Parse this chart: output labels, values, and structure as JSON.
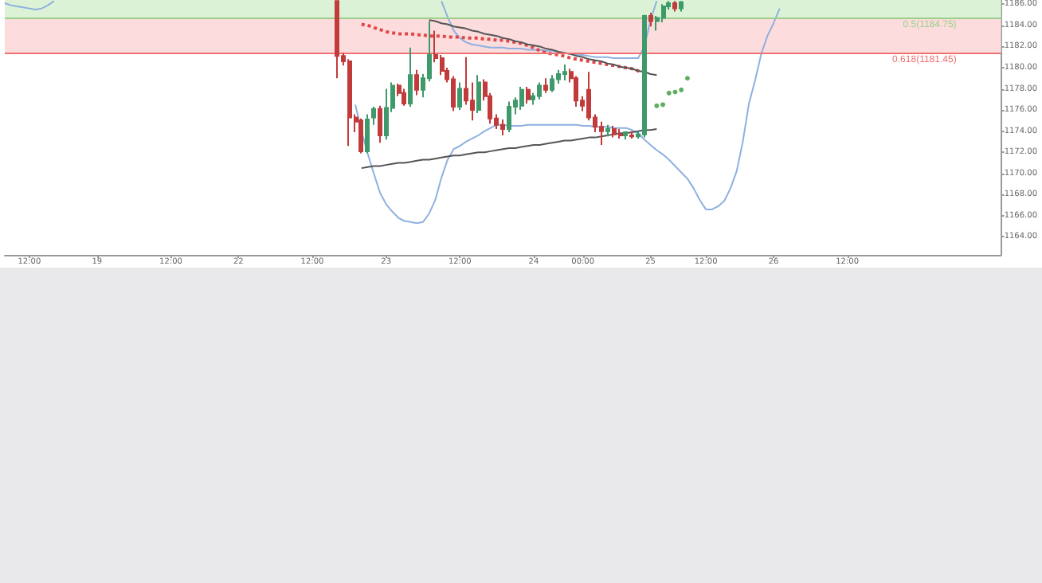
{
  "chart_data": {
    "type": "candlestick",
    "categories": [
      null,
      null,
      null,
      null,
      "12:00",
      null,
      null,
      null,
      null,
      null,
      null,
      null,
      null,
      null,
      null,
      "19",
      null,
      null,
      null,
      null,
      null,
      null,
      null,
      null,
      null,
      null,
      null,
      "12:00",
      null,
      null,
      null,
      null,
      null,
      null,
      null,
      null,
      null,
      null,
      "22",
      null,
      null,
      null,
      null,
      null,
      null,
      null,
      null,
      null,
      null,
      null,
      "12:00",
      null,
      null,
      null,
      null,
      null,
      null,
      null,
      null,
      null,
      null,
      null,
      "23",
      null,
      null,
      null,
      null,
      null,
      null,
      null,
      null,
      null,
      null,
      null,
      "12:00",
      null,
      null,
      null,
      null,
      null,
      null,
      null,
      null,
      null,
      null,
      null,
      "24",
      null,
      null,
      null,
      null,
      null,
      null,
      null,
      "00:00",
      null,
      null,
      null,
      null,
      null,
      null,
      null,
      null,
      null,
      null,
      "25",
      null,
      null,
      null,
      null,
      null,
      null,
      null,
      null,
      "12:00",
      null,
      null,
      null,
      null,
      null,
      null,
      null,
      null,
      null,
      null,
      "26",
      null,
      null,
      null,
      null,
      null,
      null,
      null,
      null,
      null,
      null,
      null,
      "12:00",
      null,
      null,
      null,
      null,
      null,
      null,
      null,
      null,
      null,
      null,
      null,
      null,
      null,
      null,
      null,
      null,
      null,
      null,
      null,
      null,
      null,
      null,
      null,
      null,
      null
    ],
    "ohlc": [
      null,
      null,
      null,
      null,
      null,
      null,
      null,
      null,
      null,
      null,
      null,
      null,
      null,
      null,
      null,
      null,
      null,
      null,
      null,
      null,
      null,
      null,
      null,
      null,
      null,
      null,
      null,
      null,
      null,
      null,
      null,
      null,
      null,
      null,
      null,
      null,
      null,
      null,
      null,
      null,
      null,
      null,
      null,
      null,
      null,
      null,
      null,
      null,
      null,
      null,
      null,
      null,
      null,
      null,
      [
        1186.3,
        1186.3,
        1179.0,
        1181.1
      ],
      [
        1181.1,
        1181.4,
        1180.2,
        1180.6
      ],
      [
        1180.6,
        1180.8,
        1172.6,
        1175.3
      ],
      [
        1175.3,
        1175.6,
        1173.9,
        1174.9
      ],
      [
        1175.0,
        1175.2,
        1171.9,
        1172.1
      ],
      [
        1172.1,
        1175.6,
        1171.9,
        1175.1
      ],
      [
        1175.3,
        1176.3,
        1174.6,
        1176.1
      ],
      [
        1176.1,
        1176.4,
        1172.9,
        1173.6
      ],
      [
        1173.6,
        1178.0,
        1173.2,
        1176.2
      ],
      [
        1176.2,
        1178.6,
        1175.8,
        1178.3
      ],
      [
        1178.3,
        1178.5,
        1177.3,
        1177.6
      ],
      [
        1177.6,
        1178.0,
        1176.4,
        1176.6
      ],
      [
        1176.6,
        1181.9,
        1176.3,
        1179.3
      ],
      [
        1179.3,
        1179.8,
        1177.4,
        1177.9
      ],
      [
        1177.9,
        1179.4,
        1177.2,
        1179.0
      ],
      [
        1179.0,
        1184.4,
        1178.7,
        1181.2
      ],
      [
        1181.2,
        1183.5,
        1180.5,
        1180.9
      ],
      [
        1180.9,
        1181.2,
        1179.3,
        1179.7
      ],
      [
        1179.7,
        1180.0,
        1178.6,
        1178.9
      ],
      [
        1178.9,
        1179.2,
        1175.9,
        1176.3
      ],
      [
        1176.3,
        1178.6,
        1176.0,
        1178.0
      ],
      [
        1178.0,
        1181.0,
        1176.5,
        1176.9
      ],
      [
        1176.9,
        1178.6,
        1175.0,
        1176.0
      ],
      [
        1176.0,
        1179.3,
        1175.7,
        1178.6
      ],
      [
        1178.6,
        1178.9,
        1176.9,
        1177.3
      ],
      [
        1177.3,
        1177.6,
        1174.7,
        1175.2
      ],
      [
        1175.2,
        1175.6,
        1174.2,
        1174.6
      ],
      [
        1174.6,
        1175.1,
        1173.6,
        1174.2
      ],
      [
        1174.2,
        1176.8,
        1173.9,
        1176.3
      ],
      [
        1176.3,
        1177.2,
        1175.6,
        1176.9
      ],
      [
        1176.4,
        1178.2,
        1176.0,
        1177.9
      ],
      [
        1177.9,
        1178.2,
        1176.6,
        1177.0
      ],
      [
        1177.0,
        1177.6,
        1176.5,
        1177.3
      ],
      [
        1177.3,
        1178.6,
        1177.0,
        1178.3
      ],
      [
        1178.3,
        1179.0,
        1177.6,
        1177.9
      ],
      [
        1177.9,
        1179.3,
        1177.7,
        1178.9
      ],
      [
        1178.9,
        1179.8,
        1178.5,
        1179.4
      ],
      [
        1179.4,
        1180.3,
        1178.8,
        1179.6
      ],
      [
        1179.6,
        1179.9,
        1178.6,
        1179.0
      ],
      [
        1179.0,
        1179.2,
        1176.3,
        1176.9
      ],
      [
        1176.9,
        1177.3,
        1175.9,
        1176.4
      ],
      [
        1177.9,
        1179.6,
        1175.0,
        1175.3
      ],
      [
        1175.3,
        1175.6,
        1173.9,
        1174.4
      ],
      [
        1174.4,
        1174.9,
        1172.7,
        1174.0
      ],
      [
        1174.0,
        1174.6,
        1173.5,
        1174.2
      ],
      [
        1174.2,
        1174.5,
        1173.4,
        1173.7
      ],
      [
        1173.7,
        1174.2,
        1173.3,
        1173.6
      ],
      [
        1173.6,
        1174.0,
        1173.2,
        1173.9
      ],
      [
        1173.6,
        1174.0,
        1173.3,
        1173.5
      ],
      [
        1173.5,
        1174.0,
        1173.3,
        1173.7
      ],
      [
        1173.7,
        1185.0,
        1173.4,
        1184.9
      ],
      [
        1184.9,
        1185.2,
        1183.9,
        1184.4
      ],
      [
        1184.4,
        1184.9,
        1183.5,
        1184.7
      ],
      [
        1184.7,
        1186.0,
        1184.3,
        1185.8
      ],
      [
        1185.8,
        1186.3,
        1185.5,
        1186.1
      ],
      [
        1186.1,
        1186.3,
        1185.3,
        1185.6
      ],
      [
        1185.6,
        1186.3,
        1185.3,
        1186.2
      ],
      null,
      null,
      null,
      null,
      null,
      null,
      null,
      null,
      null,
      null,
      null,
      null,
      null,
      null,
      null,
      null,
      null,
      null,
      null,
      null,
      null,
      null,
      null,
      null,
      null,
      null,
      null,
      null,
      null,
      null,
      null,
      null,
      null,
      null,
      null,
      null,
      null,
      null,
      null,
      null,
      null,
      null,
      null,
      null,
      null,
      null,
      null,
      null,
      null,
      null,
      null,
      null
    ],
    "colors": [
      null,
      null,
      null,
      null,
      null,
      null,
      null,
      null,
      null,
      null,
      null,
      null,
      null,
      null,
      null,
      null,
      null,
      null,
      null,
      null,
      null,
      null,
      null,
      null,
      null,
      null,
      null,
      null,
      null,
      null,
      null,
      null,
      null,
      null,
      null,
      null,
      null,
      null,
      null,
      null,
      null,
      null,
      null,
      null,
      null,
      null,
      null,
      null,
      null,
      null,
      null,
      null,
      null,
      null,
      "#c23b3b",
      "#c23b3b",
      "#c23b3b",
      "#c23b3b",
      "#c23b3b",
      "#3f9a6b",
      "#3f9a6b",
      "#c23b3b",
      "#3f9a6b",
      "#3f9a6b",
      "#c23b3b",
      "#c23b3b",
      "#3f9a6b",
      "#c23b3b",
      "#3f9a6b",
      "#3f9a6b",
      "#c23b3b",
      "#c23b3b",
      "#c23b3b",
      "#c23b3b",
      "#3f9a6b",
      "#c23b3b",
      "#c23b3b",
      "#3f9a6b",
      "#c23b3b",
      "#c23b3b",
      "#c23b3b",
      "#c23b3b",
      "#3f9a6b",
      "#3f9a6b",
      "#3f9a6b",
      "#c23b3b",
      "#3f9a6b",
      "#3f9a6b",
      "#c23b3b",
      "#3f9a6b",
      "#3f9a6b",
      "#3f9a6b",
      "#c23b3b",
      "#c23b3b",
      "#c23b3b",
      "#c23b3b",
      "#c23b3b",
      "#c23b3b",
      "#3f9a6b",
      "#c23b3b",
      "#c23b3b",
      "#3f9a6b",
      "#c23b3b",
      "#3f9a6b",
      "#3f9a6b",
      "#c23b3b",
      "#3f9a6b",
      "#3f9a6b",
      "#3f9a6b",
      "#c23b3b",
      "#3f9a6b",
      null,
      null,
      null,
      null,
      null,
      null,
      null,
      null,
      null,
      null,
      null,
      null,
      null,
      null,
      null,
      null,
      null,
      null,
      null,
      null,
      null,
      null,
      null,
      null,
      null,
      null,
      null,
      null,
      null,
      null,
      null,
      null,
      null,
      null,
      null,
      null,
      null,
      null,
      null,
      null,
      null,
      null,
      null,
      null,
      null,
      null,
      null,
      null,
      null,
      null,
      null,
      null
    ],
    "series": [
      {
        "type": "line",
        "color": "#8fb0e0",
        "values": [
          1186.1,
          1185.9,
          1185.8,
          1185.7,
          1185.6,
          1185.5,
          1185.6,
          1185.9,
          1186.3,
          null,
          null,
          null,
          null,
          null,
          null,
          null,
          null,
          null,
          null,
          null,
          null,
          null,
          null,
          null,
          null,
          null,
          null,
          null,
          null,
          null,
          null,
          null,
          null,
          null,
          null,
          null,
          null,
          null,
          null,
          null,
          null,
          null,
          null,
          null,
          null,
          null,
          null,
          null,
          null,
          null,
          null,
          null,
          null,
          null,
          null,
          null,
          null,
          null,
          null,
          null,
          null,
          null,
          null,
          null,
          null,
          null,
          null,
          null,
          null,
          null,
          null,
          null,
          null,
          null,
          null,
          null,
          null,
          null,
          null,
          null,
          null,
          null,
          null,
          null,
          null,
          null,
          null,
          null,
          null,
          null,
          null,
          null,
          null,
          null,
          null,
          null,
          null,
          null,
          null,
          null,
          null,
          null,
          null,
          null,
          null,
          null,
          null,
          null,
          null,
          null,
          null,
          null,
          null,
          null,
          null,
          null,
          null,
          null,
          null,
          null,
          null,
          null,
          null,
          null,
          null,
          null,
          null,
          null,
          null,
          null,
          null,
          null,
          null,
          null,
          null,
          null,
          null,
          null,
          null,
          null,
          null,
          null,
          null,
          null,
          null,
          null,
          null,
          null,
          null,
          null,
          null,
          null,
          null,
          null,
          null,
          null,
          null,
          null,
          null,
          null,
          null,
          null,
          null
        ]
      },
      {
        "type": "line",
        "color": "#8fb0e0",
        "values": [
          null,
          null,
          null,
          null,
          null,
          null,
          null,
          null,
          null,
          null,
          null,
          null,
          null,
          null,
          null,
          null,
          null,
          null,
          null,
          null,
          null,
          null,
          null,
          null,
          null,
          null,
          null,
          null,
          null,
          null,
          null,
          null,
          null,
          null,
          null,
          null,
          null,
          null,
          null,
          null,
          null,
          null,
          null,
          null,
          null,
          null,
          null,
          null,
          null,
          null,
          null,
          null,
          null,
          null,
          null,
          null,
          null,
          1176.5,
          1174.0,
          1171.9,
          1170.0,
          1168.2,
          1167.1,
          1166.4,
          1165.8,
          1165.5,
          1165.4,
          1165.3,
          1165.4,
          1166.2,
          1167.5,
          1169.6,
          1171.3,
          1172.3,
          1172.6,
          1173.0,
          1173.3,
          1173.6,
          1174.0,
          1174.3,
          1174.6,
          1174.6,
          1174.5,
          1174.5,
          1174.5,
          1174.6,
          1174.6,
          1174.6,
          1174.6,
          1174.6,
          1174.6,
          1174.6,
          1174.6,
          1174.6,
          1174.5,
          1174.5,
          1174.4,
          1174.4,
          1174.4,
          1174.3,
          1174.3,
          1174.3,
          1174.1,
          1173.8,
          1173.2,
          1172.7,
          1172.2,
          1171.8,
          1171.3,
          1170.7,
          1170.1,
          1169.5,
          1168.6,
          1167.5,
          1166.6,
          1166.6,
          1166.9,
          1167.4,
          1168.6,
          1170.2,
          1173.0,
          1176.6,
          1178.8,
          1181.3,
          1183.0,
          1184.2,
          1185.6,
          null,
          null,
          null,
          null,
          null,
          null,
          null,
          null,
          null,
          null,
          null,
          null,
          null,
          null,
          null,
          null,
          null,
          null,
          null,
          null,
          null,
          null,
          null,
          null,
          null,
          null,
          null,
          null,
          null,
          null,
          null,
          null,
          null,
          null,
          null,
          null
        ]
      },
      {
        "type": "line",
        "color": "#8fb0e0",
        "values": [
          null,
          null,
          null,
          null,
          null,
          null,
          null,
          null,
          null,
          null,
          null,
          null,
          null,
          null,
          null,
          null,
          null,
          null,
          null,
          null,
          null,
          null,
          null,
          null,
          null,
          null,
          null,
          null,
          null,
          null,
          null,
          null,
          null,
          null,
          null,
          null,
          null,
          null,
          null,
          null,
          null,
          null,
          null,
          null,
          null,
          null,
          null,
          null,
          null,
          null,
          null,
          null,
          null,
          null,
          null,
          null,
          null,
          null,
          null,
          null,
          null,
          null,
          null,
          null,
          null,
          null,
          null,
          null,
          null,
          null,
          null,
          1186.3,
          1184.8,
          1183.5,
          1182.8,
          1182.4,
          1182.2,
          1182.1,
          1182.0,
          1181.9,
          1181.9,
          1181.9,
          1181.8,
          1181.8,
          1181.8,
          1181.7,
          1181.7,
          1181.7,
          1181.6,
          1181.6,
          1181.5,
          1181.4,
          1181.3,
          1181.2,
          1181.2,
          1181.1,
          1181.0,
          1181.0,
          1181.0,
          1180.9,
          1180.9,
          1180.9,
          1180.9,
          1180.9,
          1182.0,
          1184.5,
          1186.3,
          null,
          null,
          null,
          null,
          null,
          null,
          null,
          null,
          null,
          null,
          null,
          null,
          null,
          null,
          null,
          null,
          null,
          null,
          null,
          null,
          null,
          null,
          null,
          null,
          null,
          null,
          null,
          null,
          null,
          null,
          null,
          null,
          null,
          null,
          null,
          null,
          null,
          null,
          null,
          null,
          null,
          null,
          null,
          null,
          null,
          null,
          null,
          null,
          null,
          null,
          null,
          null,
          null,
          null,
          null,
          null
        ]
      },
      {
        "type": "line",
        "color": "#e04848",
        "line_style": "dotted",
        "values": [
          null,
          null,
          null,
          null,
          null,
          null,
          null,
          null,
          null,
          null,
          null,
          null,
          null,
          null,
          null,
          null,
          null,
          null,
          null,
          null,
          null,
          null,
          null,
          null,
          null,
          null,
          null,
          null,
          null,
          null,
          null,
          null,
          null,
          null,
          null,
          null,
          null,
          null,
          null,
          null,
          null,
          null,
          null,
          null,
          null,
          null,
          null,
          null,
          null,
          null,
          null,
          null,
          null,
          null,
          null,
          null,
          null,
          null,
          1184.1,
          1184.0,
          1183.8,
          1183.6,
          1183.4,
          1183.3,
          1183.2,
          1183.2,
          1183.2,
          1183.1,
          1183.1,
          1183.0,
          1183.0,
          1183.0,
          1182.9,
          1182.9,
          1182.9,
          1182.8,
          1182.8,
          1182.8,
          1182.7,
          1182.7,
          1182.6,
          1182.6,
          1182.5,
          1182.4,
          1182.3,
          1182.1,
          1181.9,
          1181.6,
          1181.4,
          1181.3,
          1181.2,
          1181.1,
          1180.9,
          1180.8,
          1180.7,
          1180.6,
          1180.5,
          1180.4,
          1180.3,
          1180.2,
          1180.1,
          1180.0,
          1179.9,
          1179.7,
          1179.6,
          null,
          null,
          null,
          null,
          null,
          null,
          null,
          null,
          null,
          null,
          null,
          null,
          null,
          null,
          null,
          null,
          null,
          null,
          null,
          null,
          null,
          null,
          null,
          null,
          null,
          null,
          null,
          null,
          null,
          null,
          null,
          null,
          null,
          null,
          null,
          null,
          null,
          null,
          null,
          null,
          null,
          null,
          null,
          null,
          null,
          null,
          null,
          null,
          null,
          null,
          null,
          null,
          null,
          null,
          null,
          null,
          null,
          null
        ]
      },
      {
        "type": "scatter",
        "color": "#3a9a3a",
        "marker": "circle",
        "values": [
          null,
          null,
          null,
          null,
          null,
          null,
          null,
          null,
          null,
          null,
          null,
          null,
          null,
          null,
          null,
          null,
          null,
          null,
          null,
          null,
          null,
          null,
          null,
          null,
          null,
          null,
          null,
          null,
          null,
          null,
          null,
          null,
          null,
          null,
          null,
          null,
          null,
          null,
          null,
          null,
          null,
          null,
          null,
          null,
          null,
          null,
          null,
          null,
          null,
          null,
          null,
          null,
          null,
          null,
          null,
          null,
          null,
          null,
          null,
          null,
          null,
          null,
          null,
          null,
          null,
          null,
          null,
          null,
          null,
          null,
          null,
          null,
          null,
          null,
          null,
          null,
          null,
          null,
          null,
          null,
          null,
          null,
          null,
          null,
          null,
          null,
          null,
          null,
          null,
          null,
          null,
          null,
          null,
          null,
          null,
          null,
          null,
          null,
          null,
          null,
          null,
          null,
          null,
          null,
          null,
          null,
          1176.4,
          1176.5,
          1177.6,
          1177.7,
          1177.9,
          1179.0,
          null,
          null,
          null,
          null,
          null,
          null,
          null,
          null,
          null,
          null,
          null,
          null,
          null,
          null,
          null,
          null,
          null,
          null,
          null,
          null,
          null,
          null,
          null,
          null,
          null,
          null,
          null,
          null,
          null,
          null,
          null,
          null,
          null,
          null,
          null,
          null,
          null,
          null,
          null,
          null,
          null,
          null,
          null,
          null,
          null,
          null,
          null,
          null,
          null,
          null,
          null
        ]
      },
      {
        "type": "line",
        "color": "#555555",
        "values": [
          null,
          null,
          null,
          null,
          null,
          null,
          null,
          null,
          null,
          null,
          null,
          null,
          null,
          null,
          null,
          null,
          null,
          null,
          null,
          null,
          null,
          null,
          null,
          null,
          null,
          null,
          null,
          null,
          null,
          null,
          null,
          null,
          null,
          null,
          null,
          null,
          null,
          null,
          null,
          null,
          null,
          null,
          null,
          null,
          null,
          null,
          null,
          null,
          null,
          null,
          null,
          null,
          null,
          null,
          null,
          null,
          null,
          null,
          null,
          null,
          null,
          null,
          null,
          null,
          null,
          null,
          null,
          null,
          null,
          1184.5,
          1184.4,
          1184.2,
          1184.1,
          1183.9,
          1183.8,
          1183.7,
          1183.5,
          1183.4,
          1183.2,
          1183.1,
          1183.0,
          1182.8,
          1182.7,
          1182.5,
          1182.4,
          1182.2,
          1182.1,
          1182.0,
          1181.8,
          1181.7,
          1181.5,
          1181.4,
          1181.3,
          1181.1,
          1181.0,
          1180.8,
          1180.7,
          1180.6,
          1180.4,
          1180.3,
          1180.1,
          1180.0,
          1179.9,
          1179.7,
          1179.6,
          1179.4,
          1179.3,
          null,
          null,
          null,
          null,
          null,
          null,
          null,
          null,
          null,
          null,
          null,
          null,
          null,
          null,
          null,
          null,
          null,
          null,
          null,
          null,
          null,
          null,
          null,
          null,
          null,
          null,
          null,
          null,
          null,
          null,
          null,
          null,
          null,
          null,
          null,
          null,
          null,
          null,
          null,
          null,
          null,
          null,
          null,
          null,
          null,
          null,
          null,
          null,
          null,
          null,
          null,
          null,
          null,
          null,
          null,
          null
        ]
      },
      {
        "type": "line",
        "color": "#555555",
        "values": [
          null,
          null,
          null,
          null,
          null,
          null,
          null,
          null,
          null,
          null,
          null,
          null,
          null,
          null,
          null,
          null,
          null,
          null,
          null,
          null,
          null,
          null,
          null,
          null,
          null,
          null,
          null,
          null,
          null,
          null,
          null,
          null,
          null,
          null,
          null,
          null,
          null,
          null,
          null,
          null,
          null,
          null,
          null,
          null,
          null,
          null,
          null,
          null,
          null,
          null,
          null,
          null,
          null,
          null,
          null,
          null,
          null,
          null,
          1170.5,
          1170.6,
          1170.7,
          1170.7,
          1170.8,
          1170.9,
          1171.0,
          1171.0,
          1171.1,
          1171.2,
          1171.3,
          1171.3,
          1171.4,
          1171.5,
          1171.6,
          1171.7,
          1171.7,
          1171.8,
          1171.9,
          1172.0,
          1172.0,
          1172.1,
          1172.2,
          1172.3,
          1172.4,
          1172.4,
          1172.5,
          1172.6,
          1172.7,
          1172.7,
          1172.8,
          1172.9,
          1173.0,
          1173.1,
          1173.1,
          1173.2,
          1173.3,
          1173.4,
          1173.4,
          1173.5,
          1173.6,
          1173.7,
          1173.8,
          1173.8,
          1173.9,
          1174.0,
          1174.1,
          1174.1,
          1174.2,
          null,
          null,
          null,
          null,
          null,
          null,
          null,
          null,
          null,
          null,
          null,
          null,
          null,
          null,
          null,
          null,
          null,
          null,
          null,
          null,
          null,
          null,
          null,
          null,
          null,
          null,
          null,
          null,
          null,
          null,
          null,
          null,
          null,
          null,
          null,
          null,
          null,
          null,
          null,
          null,
          null,
          null,
          null,
          null,
          null,
          null,
          null,
          null,
          null,
          null,
          null,
          null,
          null,
          null,
          null,
          null
        ]
      }
    ],
    "bands": [
      {
        "axis": "y",
        "from": 1184.75,
        "to": 1186.4,
        "color": "#dcf2d6"
      },
      {
        "axis": "y",
        "from": 1181.45,
        "to": 1184.75,
        "color": "#fcdcdc"
      }
    ],
    "ref_lines": [
      {
        "axis": "y",
        "value": 1184.75,
        "label": "0.5(1184.75)",
        "color": "#9ccf8c"
      },
      {
        "axis": "y",
        "value": 1181.45,
        "label": "0.618(1181.45)",
        "color": "#ee7070"
      }
    ],
    "ylim": [
      1162.3,
      1186.4
    ],
    "yticks": [
      {
        "value": 1164,
        "label": "1164.00"
      },
      {
        "value": 1166,
        "label": "1166.00"
      },
      {
        "value": 1168,
        "label": "1168.00"
      },
      {
        "value": 1170,
        "label": "1170.00"
      },
      {
        "value": 1172,
        "label": "1172.00"
      },
      {
        "value": 1174,
        "label": "1174.00"
      },
      {
        "value": 1176,
        "label": "1176.00"
      },
      {
        "value": 1178,
        "label": "1178.00"
      },
      {
        "value": 1180,
        "label": "1180.00"
      },
      {
        "value": 1182,
        "label": "1182.00"
      },
      {
        "value": 1184,
        "label": "1184.00"
      },
      {
        "value": 1186,
        "label": "1186.00"
      }
    ],
    "grid": false
  }
}
